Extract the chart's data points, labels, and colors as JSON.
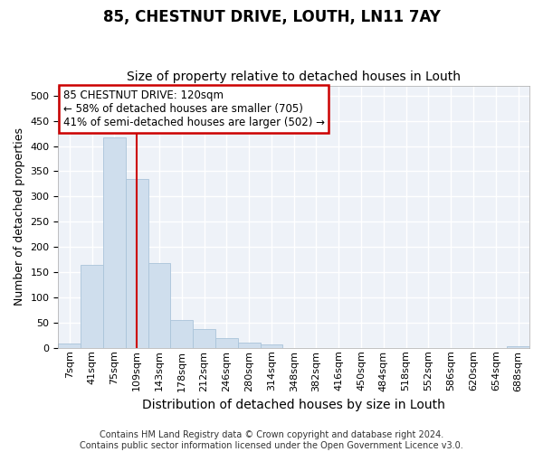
{
  "title": "85, CHESTNUT DRIVE, LOUTH, LN11 7AY",
  "subtitle": "Size of property relative to detached houses in Louth",
  "xlabel": "Distribution of detached houses by size in Louth",
  "ylabel": "Number of detached properties",
  "bar_color": "#cfdeed",
  "bar_edge_color": "#aac4da",
  "bar_values": [
    8,
    165,
    417,
    335,
    168,
    55,
    37,
    20,
    11,
    6,
    0,
    0,
    0,
    0,
    0,
    0,
    0,
    0,
    0,
    0,
    3
  ],
  "bar_labels": [
    "7sqm",
    "41sqm",
    "75sqm",
    "109sqm",
    "143sqm",
    "178sqm",
    "212sqm",
    "246sqm",
    "280sqm",
    "314sqm",
    "348sqm",
    "382sqm",
    "416sqm",
    "450sqm",
    "484sqm",
    "518sqm",
    "552sqm",
    "586sqm",
    "620sqm",
    "654sqm",
    "688sqm"
  ],
  "ylim": [
    0,
    520
  ],
  "yticks": [
    0,
    50,
    100,
    150,
    200,
    250,
    300,
    350,
    400,
    450,
    500
  ],
  "vline_x_index": 3,
  "vline_color": "#cc0000",
  "annotation_text": "85 CHESTNUT DRIVE: 120sqm\n← 58% of detached houses are smaller (705)\n41% of semi-detached houses are larger (502) →",
  "annotation_box_color": "#ffffff",
  "annotation_box_edge": "#cc0000",
  "background_color": "#eef2f8",
  "grid_color": "#ffffff",
  "footer_text": "Contains HM Land Registry data © Crown copyright and database right 2024.\nContains public sector information licensed under the Open Government Licence v3.0.",
  "title_fontsize": 12,
  "subtitle_fontsize": 10,
  "xlabel_fontsize": 10,
  "ylabel_fontsize": 9,
  "tick_fontsize": 8,
  "annot_fontsize": 8.5,
  "footer_fontsize": 7
}
